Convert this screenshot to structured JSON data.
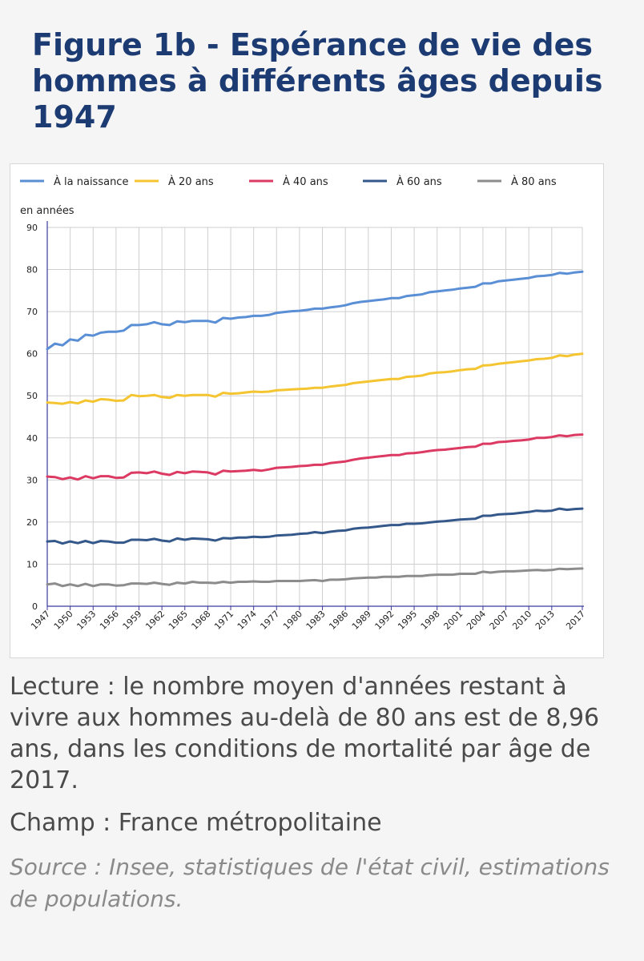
{
  "page": {
    "title": "Figure 1b - Espérance de vie des hommes à différents âges depuis 1947",
    "reading_note": "Lecture : le nombre moyen d'années restant à vivre aux hommes au-delà de 80 ans est de 8,96 ans, dans les conditions de mortalité par âge de 2017.",
    "scope_note": "Champ : France métropolitaine",
    "source_note": "Source : Insee, statistiques de l'état civil, estimations de populations."
  },
  "colors": {
    "background": "#f5f5f5",
    "title": "#1d3b73",
    "grid": "#cfcfcf",
    "axis": "#3a3aa0"
  },
  "chart_data": {
    "type": "line",
    "ylabel": "en années",
    "ylim": [
      0,
      90
    ],
    "yticks": [
      0,
      10,
      20,
      30,
      40,
      50,
      60,
      70,
      80,
      90
    ],
    "xlim": [
      1947,
      2017
    ],
    "xticks": [
      1947,
      1950,
      1953,
      1956,
      1959,
      1962,
      1965,
      1968,
      1971,
      1974,
      1977,
      1980,
      1983,
      1986,
      1989,
      1992,
      1995,
      1998,
      2001,
      2004,
      2007,
      2010,
      2013,
      2017
    ],
    "grid": true,
    "legend_position": "top",
    "x": [
      1947,
      1948,
      1949,
      1950,
      1951,
      1952,
      1953,
      1954,
      1955,
      1956,
      1957,
      1958,
      1959,
      1960,
      1961,
      1962,
      1963,
      1964,
      1965,
      1966,
      1967,
      1968,
      1969,
      1970,
      1971,
      1972,
      1973,
      1974,
      1975,
      1976,
      1977,
      1978,
      1979,
      1980,
      1981,
      1982,
      1983,
      1984,
      1985,
      1986,
      1987,
      1988,
      1989,
      1990,
      1991,
      1992,
      1993,
      1994,
      1995,
      1996,
      1997,
      1998,
      1999,
      2000,
      2001,
      2002,
      2003,
      2004,
      2005,
      2006,
      2007,
      2008,
      2009,
      2010,
      2011,
      2012,
      2013,
      2014,
      2015,
      2016,
      2017
    ],
    "series": [
      {
        "name": "À la naissance",
        "color": "#5a8fd6",
        "values": [
          61.1,
          62.4,
          62.0,
          63.4,
          63.1,
          64.5,
          64.3,
          65.0,
          65.2,
          65.2,
          65.5,
          66.8,
          66.8,
          67.0,
          67.5,
          67.0,
          66.8,
          67.7,
          67.5,
          67.8,
          67.8,
          67.8,
          67.4,
          68.5,
          68.3,
          68.6,
          68.7,
          69.0,
          69.0,
          69.2,
          69.7,
          69.9,
          70.1,
          70.2,
          70.4,
          70.7,
          70.7,
          71.0,
          71.2,
          71.5,
          72.0,
          72.3,
          72.5,
          72.7,
          72.9,
          73.2,
          73.2,
          73.7,
          73.9,
          74.1,
          74.6,
          74.8,
          75.0,
          75.2,
          75.5,
          75.7,
          75.9,
          76.7,
          76.7,
          77.2,
          77.4,
          77.6,
          77.8,
          78.0,
          78.4,
          78.5,
          78.7,
          79.2,
          79.0,
          79.3,
          79.5
        ]
      },
      {
        "name": "À 20 ans",
        "color": "#f4c531",
        "values": [
          48.4,
          48.3,
          48.1,
          48.5,
          48.2,
          48.9,
          48.6,
          49.2,
          49.1,
          48.8,
          48.9,
          50.2,
          49.9,
          50.0,
          50.2,
          49.7,
          49.5,
          50.2,
          50.0,
          50.2,
          50.2,
          50.2,
          49.8,
          50.7,
          50.5,
          50.6,
          50.8,
          51.0,
          50.9,
          51.0,
          51.3,
          51.4,
          51.5,
          51.6,
          51.7,
          51.9,
          51.9,
          52.2,
          52.4,
          52.6,
          53.0,
          53.2,
          53.4,
          53.6,
          53.8,
          54.0,
          54.0,
          54.5,
          54.6,
          54.8,
          55.3,
          55.5,
          55.6,
          55.8,
          56.1,
          56.3,
          56.4,
          57.2,
          57.3,
          57.6,
          57.8,
          58.0,
          58.2,
          58.4,
          58.7,
          58.8,
          59.0,
          59.6,
          59.4,
          59.8,
          60.0
        ]
      },
      {
        "name": "À 40 ans",
        "color": "#dc3a62",
        "values": [
          30.8,
          30.7,
          30.2,
          30.6,
          30.1,
          30.9,
          30.4,
          30.9,
          30.9,
          30.5,
          30.6,
          31.7,
          31.8,
          31.6,
          32.0,
          31.5,
          31.2,
          31.9,
          31.6,
          32.0,
          31.9,
          31.8,
          31.3,
          32.2,
          32.0,
          32.1,
          32.2,
          32.4,
          32.2,
          32.5,
          32.9,
          33.0,
          33.1,
          33.3,
          33.4,
          33.6,
          33.6,
          34.0,
          34.2,
          34.4,
          34.8,
          35.1,
          35.3,
          35.5,
          35.7,
          35.9,
          35.9,
          36.3,
          36.4,
          36.6,
          36.9,
          37.1,
          37.2,
          37.4,
          37.6,
          37.8,
          37.9,
          38.6,
          38.6,
          39.0,
          39.1,
          39.3,
          39.4,
          39.6,
          40.0,
          40.0,
          40.2,
          40.6,
          40.4,
          40.7,
          40.8
        ]
      },
      {
        "name": "À 60 ans",
        "color": "#35588b",
        "values": [
          15.4,
          15.5,
          14.9,
          15.4,
          15.0,
          15.5,
          15.0,
          15.5,
          15.4,
          15.1,
          15.1,
          15.8,
          15.8,
          15.7,
          16.0,
          15.6,
          15.4,
          16.1,
          15.8,
          16.1,
          16.0,
          15.9,
          15.6,
          16.2,
          16.1,
          16.3,
          16.3,
          16.5,
          16.4,
          16.5,
          16.8,
          16.9,
          17.0,
          17.2,
          17.3,
          17.6,
          17.4,
          17.7,
          17.9,
          18.0,
          18.4,
          18.6,
          18.7,
          18.9,
          19.1,
          19.3,
          19.3,
          19.6,
          19.6,
          19.7,
          19.9,
          20.1,
          20.2,
          20.4,
          20.6,
          20.7,
          20.8,
          21.5,
          21.5,
          21.8,
          21.9,
          22.0,
          22.2,
          22.4,
          22.7,
          22.6,
          22.7,
          23.2,
          22.9,
          23.1,
          23.2
        ]
      },
      {
        "name": "À 80 ans",
        "color": "#8c8c8c",
        "values": [
          5.2,
          5.4,
          4.8,
          5.2,
          4.8,
          5.3,
          4.8,
          5.2,
          5.2,
          4.9,
          5.0,
          5.4,
          5.4,
          5.3,
          5.6,
          5.3,
          5.1,
          5.6,
          5.4,
          5.8,
          5.6,
          5.6,
          5.5,
          5.8,
          5.6,
          5.8,
          5.8,
          5.9,
          5.8,
          5.8,
          6.0,
          6.0,
          6.0,
          6.0,
          6.1,
          6.2,
          6.0,
          6.3,
          6.3,
          6.4,
          6.6,
          6.7,
          6.8,
          6.8,
          7.0,
          7.0,
          7.0,
          7.2,
          7.2,
          7.2,
          7.4,
          7.5,
          7.5,
          7.5,
          7.7,
          7.7,
          7.7,
          8.2,
          8.0,
          8.2,
          8.3,
          8.3,
          8.4,
          8.5,
          8.6,
          8.5,
          8.6,
          8.9,
          8.8,
          8.9,
          8.96
        ]
      }
    ]
  }
}
